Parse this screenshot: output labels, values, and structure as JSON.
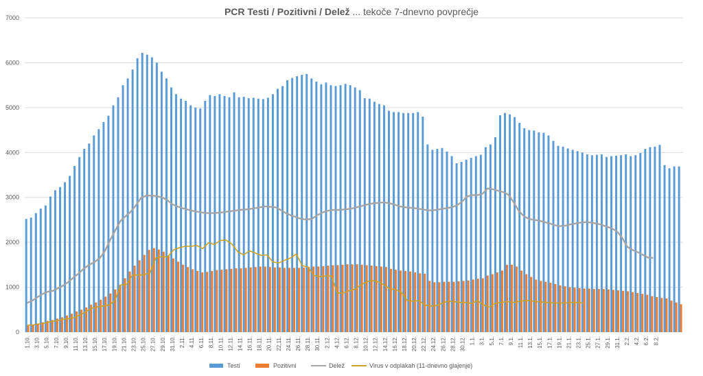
{
  "chart_data": {
    "type": "bar",
    "title": "PCR Testi / Pozitivni / Delež ... tekoče 7-dnevno povprečje",
    "title_bold": "PCR Testi / Pozitivni / Delež",
    "title_rest": " ... tekoče 7-dnevno povprečje",
    "ylim": [
      0,
      7000
    ],
    "yticks": [
      0,
      1000,
      2000,
      3000,
      4000,
      5000,
      6000,
      7000
    ],
    "grid": true,
    "legend_position": "bottom",
    "x_tick_labels": [
      "1.10.",
      "3.10.",
      "5.10.",
      "7.10.",
      "9.10.",
      "11.10.",
      "13.10.",
      "15.10.",
      "17.10.",
      "19.10.",
      "21.10.",
      "23.10.",
      "25.10.",
      "27.10.",
      "29.10.",
      "31.10.",
      "2.11.",
      "4.11.",
      "6.11.",
      "8.11.",
      "10.11.",
      "12.11.",
      "14.11.",
      "16.11.",
      "18.11.",
      "20.11.",
      "22.11.",
      "24.11.",
      "26.11.",
      "28.11.",
      "30.11.",
      "2.12.",
      "4.12.",
      "6.12.",
      "8.12.",
      "10.12.",
      "12.12.",
      "14.12.",
      "16.12.",
      "18.12.",
      "20.12.",
      "22.12.",
      "24.12.",
      "26.12.",
      "28.12.",
      "30.12.",
      "1.1.",
      "3.1.",
      "5.1.",
      "7.1.",
      "9.1.",
      "11.1.",
      "13.1.",
      "15.1.",
      "17.1.",
      "19.1.",
      "21.1.",
      "23.1.",
      "25.1.",
      "27.1.",
      "29.1.",
      "31.1.",
      "2.2.",
      "4.2.",
      "6.2.",
      "8.2."
    ],
    "series": [
      {
        "name": "Testi",
        "kind": "bar",
        "color": "#5b9bd5",
        "values": [
          2520,
          2550,
          2650,
          2750,
          2820,
          3020,
          3160,
          3230,
          3340,
          3480,
          3700,
          3900,
          4080,
          4200,
          4380,
          4520,
          4680,
          4820,
          5050,
          5230,
          5500,
          5650,
          5850,
          6100,
          6220,
          6180,
          6120,
          6000,
          5800,
          5650,
          5450,
          5300,
          5200,
          5150,
          5050,
          5000,
          4980,
          5150,
          5280,
          5260,
          5300,
          5260,
          5230,
          5340,
          5230,
          5240,
          5210,
          5220,
          5200,
          5190,
          5220,
          5300,
          5420,
          5480,
          5610,
          5660,
          5700,
          5730,
          5750,
          5650,
          5580,
          5520,
          5560,
          5500,
          5480,
          5500,
          5530,
          5500,
          5450,
          5390,
          5210,
          5200,
          5130,
          5080,
          5050,
          4930,
          4900,
          4900,
          4880,
          4880,
          4880,
          4900,
          4800,
          4180,
          4060,
          4080,
          4100,
          4020,
          3920,
          3760,
          3790,
          3840,
          3880,
          3920,
          3950,
          4120,
          4180,
          4340,
          4830,
          4880,
          4850,
          4790,
          4660,
          4540,
          4500,
          4490,
          4450,
          4440,
          4380,
          4260,
          4150,
          4130,
          4090,
          4060,
          4030,
          4000,
          3960,
          3940,
          3950,
          3960,
          3900,
          3920,
          3930,
          3940,
          3960,
          3920,
          3940,
          3990,
          4080,
          4120,
          4130,
          4170,
          3720,
          3650,
          3690,
          3690
        ],
        "x_start_index": 0
      },
      {
        "name": "Pozitivni",
        "kind": "bar",
        "color": "#ed7d31",
        "values": [
          140,
          160,
          190,
          220,
          250,
          270,
          300,
          330,
          370,
          410,
          460,
          500,
          550,
          610,
          660,
          720,
          790,
          860,
          950,
          1050,
          1200,
          1350,
          1480,
          1600,
          1720,
          1830,
          1870,
          1840,
          1790,
          1710,
          1640,
          1570,
          1500,
          1450,
          1400,
          1360,
          1330,
          1340,
          1360,
          1380,
          1390,
          1400,
          1410,
          1420,
          1420,
          1430,
          1440,
          1450,
          1460,
          1460,
          1450,
          1440,
          1440,
          1430,
          1430,
          1430,
          1430,
          1440,
          1450,
          1460,
          1460,
          1470,
          1480,
          1490,
          1490,
          1500,
          1510,
          1510,
          1510,
          1500,
          1490,
          1480,
          1470,
          1460,
          1450,
          1410,
          1390,
          1370,
          1360,
          1350,
          1330,
          1310,
          1300,
          1140,
          1110,
          1110,
          1120,
          1120,
          1120,
          1130,
          1140,
          1150,
          1170,
          1190,
          1200,
          1260,
          1290,
          1330,
          1370,
          1500,
          1500,
          1460,
          1370,
          1290,
          1230,
          1170,
          1140,
          1120,
          1100,
          1070,
          1040,
          1020,
          1000,
          990,
          980,
          970,
          970,
          960,
          960,
          960,
          950,
          940,
          930,
          920,
          910,
          890,
          870,
          850,
          830,
          800,
          780,
          760,
          750,
          700,
          660,
          620,
          600
        ],
        "x_start_index": 0
      },
      {
        "name": "Delež",
        "kind": "line",
        "color": "#a5a5a5",
        "values": [
          650,
          700,
          780,
          850,
          900,
          920,
          980,
          1040,
          1120,
          1220,
          1310,
          1420,
          1500,
          1560,
          1640,
          1800,
          2040,
          2260,
          2470,
          2580,
          2680,
          2820,
          2990,
          3040,
          3040,
          3030,
          3000,
          2950,
          2850,
          2800,
          2760,
          2730,
          2700,
          2680,
          2660,
          2650,
          2650,
          2660,
          2670,
          2690,
          2700,
          2720,
          2730,
          2740,
          2760,
          2780,
          2800,
          2790,
          2780,
          2720,
          2650,
          2600,
          2560,
          2520,
          2510,
          2520,
          2600,
          2660,
          2700,
          2720,
          2720,
          2730,
          2740,
          2760,
          2790,
          2820,
          2850,
          2870,
          2880,
          2890,
          2870,
          2840,
          2800,
          2780,
          2770,
          2760,
          2740,
          2720,
          2710,
          2720,
          2740,
          2760,
          2780,
          2820,
          2900,
          3020,
          3050,
          3050,
          3080,
          3200,
          3180,
          3150,
          3120,
          3060,
          2900,
          2700,
          2580,
          2520,
          2500,
          2480,
          2450,
          2420,
          2380,
          2360,
          2370,
          2400,
          2420,
          2440,
          2450,
          2440,
          2420,
          2390,
          2350,
          2310,
          2240,
          2100,
          1900,
          1830,
          1780,
          1720,
          1660,
          1650
        ],
        "x_start_index": 0,
        "x_step": 1.07
      },
      {
        "name": "Virus v odplakah (11-dnevno glajenje)",
        "kind": "line",
        "color": "#c9a227",
        "values": [
          150,
          160,
          180,
          200,
          230,
          250,
          280,
          300,
          320,
          380,
          450,
          530,
          560,
          580,
          600,
          700,
          1050,
          1060,
          1270,
          1270,
          1280,
          1320,
          1650,
          1680,
          1670,
          1830,
          1880,
          1910,
          1910,
          1930,
          1860,
          1990,
          1950,
          2040,
          2050,
          1960,
          1790,
          1720,
          1810,
          1760,
          1710,
          1720,
          1560,
          1540,
          1600,
          1650,
          1740,
          1480,
          1450,
          1260,
          1240,
          1250,
          1250,
          870,
          870,
          920,
          950,
          1050,
          1120,
          1150,
          1120,
          1050,
          960,
          950,
          880,
          700,
          690,
          700,
          600,
          580,
          590,
          650,
          690,
          680,
          660,
          660,
          640,
          700,
          600,
          560,
          640,
          660,
          680,
          660,
          680,
          700,
          700,
          680,
          670,
          660,
          650,
          650,
          650,
          660,
          660,
          650
        ],
        "x_start_index": 0,
        "x_step": 1.21
      }
    ]
  }
}
